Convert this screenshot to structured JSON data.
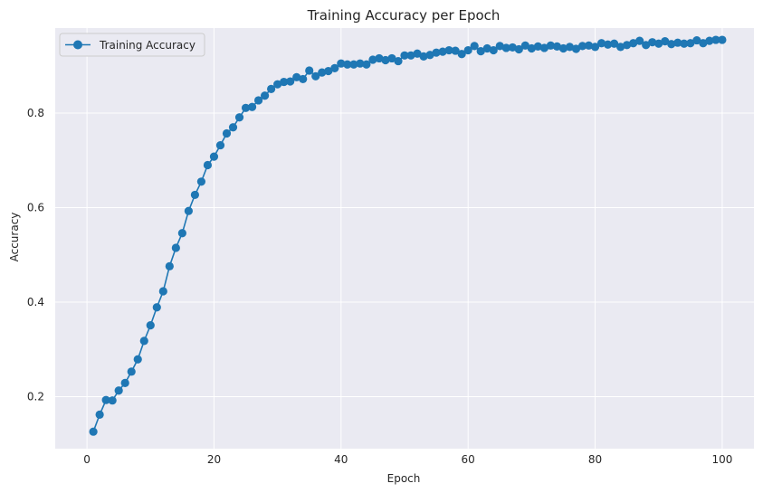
{
  "chart_data": {
    "type": "line",
    "title": "Training Accuracy per Epoch",
    "xlabel": "Epoch",
    "ylabel": "Accuracy",
    "xlim": [
      -5,
      105
    ],
    "ylim": [
      0.09,
      0.98
    ],
    "xticks": [
      0,
      20,
      40,
      60,
      80,
      100
    ],
    "yticks": [
      0.2,
      0.4,
      0.6,
      0.8
    ],
    "grid": true,
    "legend": "top-left",
    "series": [
      {
        "name": "Training Accuracy",
        "color": "#1f77b4",
        "marker": "circle",
        "x": [
          1,
          2,
          3,
          4,
          5,
          6,
          7,
          8,
          9,
          10,
          11,
          12,
          13,
          14,
          15,
          16,
          17,
          18,
          19,
          20,
          21,
          22,
          23,
          24,
          25,
          26,
          27,
          28,
          29,
          30,
          31,
          32,
          33,
          34,
          35,
          36,
          37,
          38,
          39,
          40,
          41,
          42,
          43,
          44,
          45,
          46,
          47,
          48,
          49,
          50,
          51,
          52,
          53,
          54,
          55,
          56,
          57,
          58,
          59,
          60,
          61,
          62,
          63,
          64,
          65,
          66,
          67,
          68,
          69,
          70,
          71,
          72,
          73,
          74,
          75,
          76,
          77,
          78,
          79,
          80,
          81,
          82,
          83,
          84,
          85,
          86,
          87,
          88,
          89,
          90,
          91,
          92,
          93,
          94,
          95,
          96,
          97,
          98,
          99,
          100
        ],
        "y": [
          0.126,
          0.162,
          0.193,
          0.192,
          0.213,
          0.229,
          0.253,
          0.279,
          0.318,
          0.351,
          0.389,
          0.423,
          0.476,
          0.515,
          0.546,
          0.593,
          0.627,
          0.655,
          0.69,
          0.708,
          0.732,
          0.757,
          0.77,
          0.791,
          0.811,
          0.813,
          0.827,
          0.837,
          0.851,
          0.861,
          0.866,
          0.867,
          0.876,
          0.872,
          0.89,
          0.878,
          0.886,
          0.889,
          0.895,
          0.905,
          0.903,
          0.903,
          0.905,
          0.903,
          0.913,
          0.916,
          0.912,
          0.916,
          0.91,
          0.922,
          0.922,
          0.926,
          0.92,
          0.923,
          0.928,
          0.93,
          0.933,
          0.932,
          0.925,
          0.933,
          0.942,
          0.931,
          0.937,
          0.933,
          0.942,
          0.938,
          0.939,
          0.935,
          0.943,
          0.937,
          0.941,
          0.938,
          0.943,
          0.941,
          0.937,
          0.94,
          0.936,
          0.942,
          0.943,
          0.94,
          0.948,
          0.945,
          0.947,
          0.94,
          0.944,
          0.948,
          0.953,
          0.944,
          0.95,
          0.947,
          0.952,
          0.946,
          0.949,
          0.947,
          0.948,
          0.954,
          0.948,
          0.953,
          0.955,
          0.955
        ]
      }
    ]
  }
}
